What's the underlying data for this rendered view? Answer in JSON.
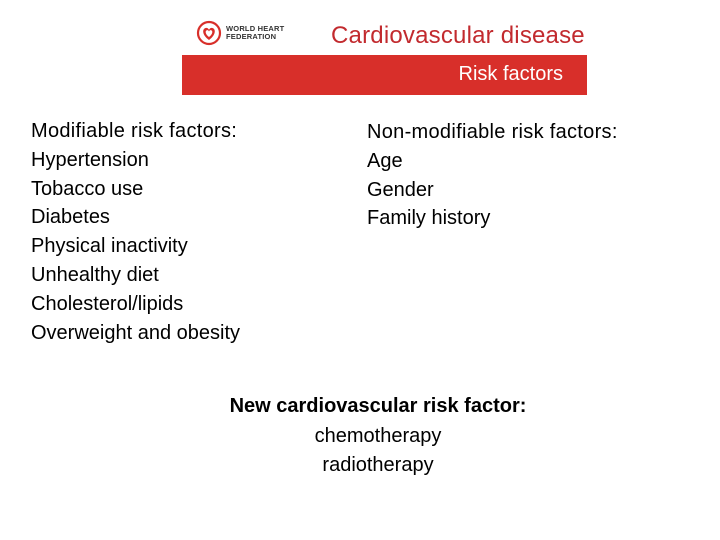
{
  "header": {
    "logo_text": [
      "WORLD HEART",
      "FEDERATION"
    ],
    "title": "Cardiovascular disease",
    "banner": "Risk factors"
  },
  "modifiable": {
    "heading": "Modifiable risk factors:",
    "items": [
      "Hypertension",
      "Tobacco use",
      "Diabetes",
      "Physical inactivity",
      "Unhealthy diet",
      "Cholesterol/lipids",
      "Overweight and obesity"
    ]
  },
  "non_modifiable": {
    "heading": "Non-modifiable risk factors:",
    "items": [
      "Age",
      "Gender",
      "Family history"
    ]
  },
  "new_factor": {
    "heading": "New cardiovascular risk factor:",
    "items": [
      "chemotherapy",
      "radiotherapy"
    ]
  },
  "colors": {
    "brand_red": "#d82f2a",
    "title_red": "#c22a2e",
    "banner_text": "#ffffff"
  }
}
